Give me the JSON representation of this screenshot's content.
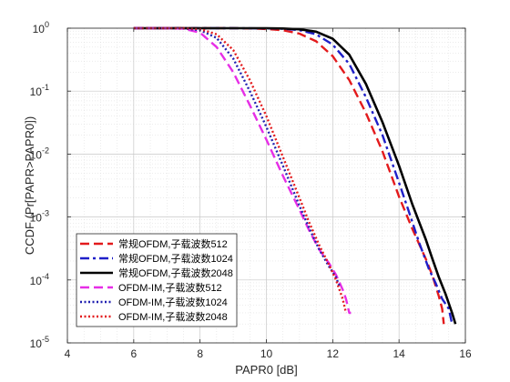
{
  "chart_data": {
    "type": "line",
    "title": "",
    "xlabel": "PAPR0 [dB]",
    "ylabel": "CCDF (Pr[PAPR>PAPR0])",
    "xlim": [
      4,
      16
    ],
    "ylim": [
      1e-05,
      1
    ],
    "yscale": "log",
    "grid": true,
    "minor_grid": true,
    "legend_position": "bottom-left",
    "x_ticks": [
      4,
      6,
      8,
      10,
      12,
      14,
      16
    ],
    "y_ticks": [
      {
        "value": 1e-05,
        "base": "10",
        "exp": "-5"
      },
      {
        "value": 0.0001,
        "base": "10",
        "exp": "-4"
      },
      {
        "value": 0.001,
        "base": "10",
        "exp": "-3"
      },
      {
        "value": 0.01,
        "base": "10",
        "exp": "-2"
      },
      {
        "value": 0.1,
        "base": "10",
        "exp": "-1"
      },
      {
        "value": 1,
        "base": "10",
        "exp": "0"
      }
    ],
    "series": [
      {
        "name": "常规OFDM,子载波数512",
        "color": "#e31a1c",
        "dash": "10,5",
        "width": 2.4,
        "x": [
          6,
          8,
          9,
          9.6,
          10.0,
          10.5,
          11.0,
          11.5,
          12.0,
          12.5,
          13.0,
          13.5,
          14.0,
          14.4,
          14.8,
          15.0,
          15.2,
          15.3,
          15.35
        ],
        "y": [
          1,
          1,
          0.999,
          0.99,
          0.97,
          0.93,
          0.82,
          0.62,
          0.36,
          0.15,
          0.045,
          0.011,
          0.0021,
          0.00065,
          0.00022,
          0.00012,
          5.5e-05,
          3.5e-05,
          2e-05
        ]
      },
      {
        "name": "常规OFDM,子载波数1024",
        "color": "#1f1fc8",
        "dash": "10,4,3,4",
        "width": 2.4,
        "x": [
          6,
          8,
          9,
          10.0,
          10.5,
          11.0,
          11.5,
          12.0,
          12.5,
          13.0,
          13.5,
          14.0,
          14.3,
          14.6,
          14.9,
          15.1,
          15.3,
          15.5,
          15.6
        ],
        "y": [
          1,
          1,
          1,
          0.995,
          0.98,
          0.93,
          0.8,
          0.55,
          0.27,
          0.08,
          0.02,
          0.0035,
          0.0012,
          0.0004,
          0.00015,
          9e-05,
          5e-05,
          3.5e-05,
          2e-05
        ]
      },
      {
        "name": "常规OFDM,子载波数2048",
        "color": "#000000",
        "dash": "",
        "width": 2.6,
        "x": [
          6,
          8,
          10.0,
          10.5,
          11.0,
          11.5,
          12.0,
          12.5,
          13.0,
          13.5,
          14.0,
          14.4,
          14.8,
          15.0,
          15.2,
          15.4,
          15.6,
          15.7
        ],
        "y": [
          1,
          1,
          1,
          0.99,
          0.96,
          0.88,
          0.68,
          0.38,
          0.13,
          0.032,
          0.0065,
          0.0016,
          0.00045,
          0.00022,
          0.00011,
          6e-05,
          3e-05,
          2e-05
        ]
      },
      {
        "name": "OFDM-IM,子载波数512",
        "color": "#e62ee6",
        "dash": "10,5",
        "width": 2.4,
        "x": [
          6,
          7.0,
          7.5,
          8.0,
          8.5,
          9.0,
          9.5,
          10.0,
          10.5,
          11.0,
          11.3,
          11.6,
          11.9,
          12.1,
          12.3,
          12.4,
          12.5,
          12.55
        ],
        "y": [
          1,
          0.999,
          0.98,
          0.85,
          0.5,
          0.2,
          0.06,
          0.017,
          0.0045,
          0.0013,
          0.0006,
          0.0003,
          0.00018,
          0.00012,
          7e-05,
          5e-05,
          3e-05,
          3e-05
        ]
      },
      {
        "name": "OFDM-IM,子载波数1024",
        "color": "#2020b0",
        "dash": "2,2.5",
        "width": 2.4,
        "x": [
          6,
          7.0,
          7.5,
          8.0,
          8.5,
          9.0,
          9.5,
          10.0,
          10.5,
          11.0,
          11.3,
          11.6,
          11.9,
          12.1,
          12.2
        ],
        "y": [
          1,
          1,
          0.99,
          0.93,
          0.7,
          0.33,
          0.1,
          0.027,
          0.0065,
          0.0015,
          0.00065,
          0.0003,
          0.00016,
          0.00011,
          8e-05
        ]
      },
      {
        "name": "OFDM-IM,子载波数2048",
        "color": "#e31a1c",
        "dash": "2,2.5",
        "width": 2.4,
        "x": [
          6,
          7.0,
          7.5,
          8.0,
          8.5,
          9.0,
          9.5,
          10.0,
          10.5,
          11.0,
          11.3,
          11.6,
          11.9,
          12.1,
          12.3,
          12.4
        ],
        "y": [
          1,
          1,
          1,
          0.97,
          0.8,
          0.45,
          0.15,
          0.04,
          0.009,
          0.002,
          0.0008,
          0.00035,
          0.00017,
          0.0001,
          5e-05,
          3e-05
        ]
      }
    ]
  }
}
